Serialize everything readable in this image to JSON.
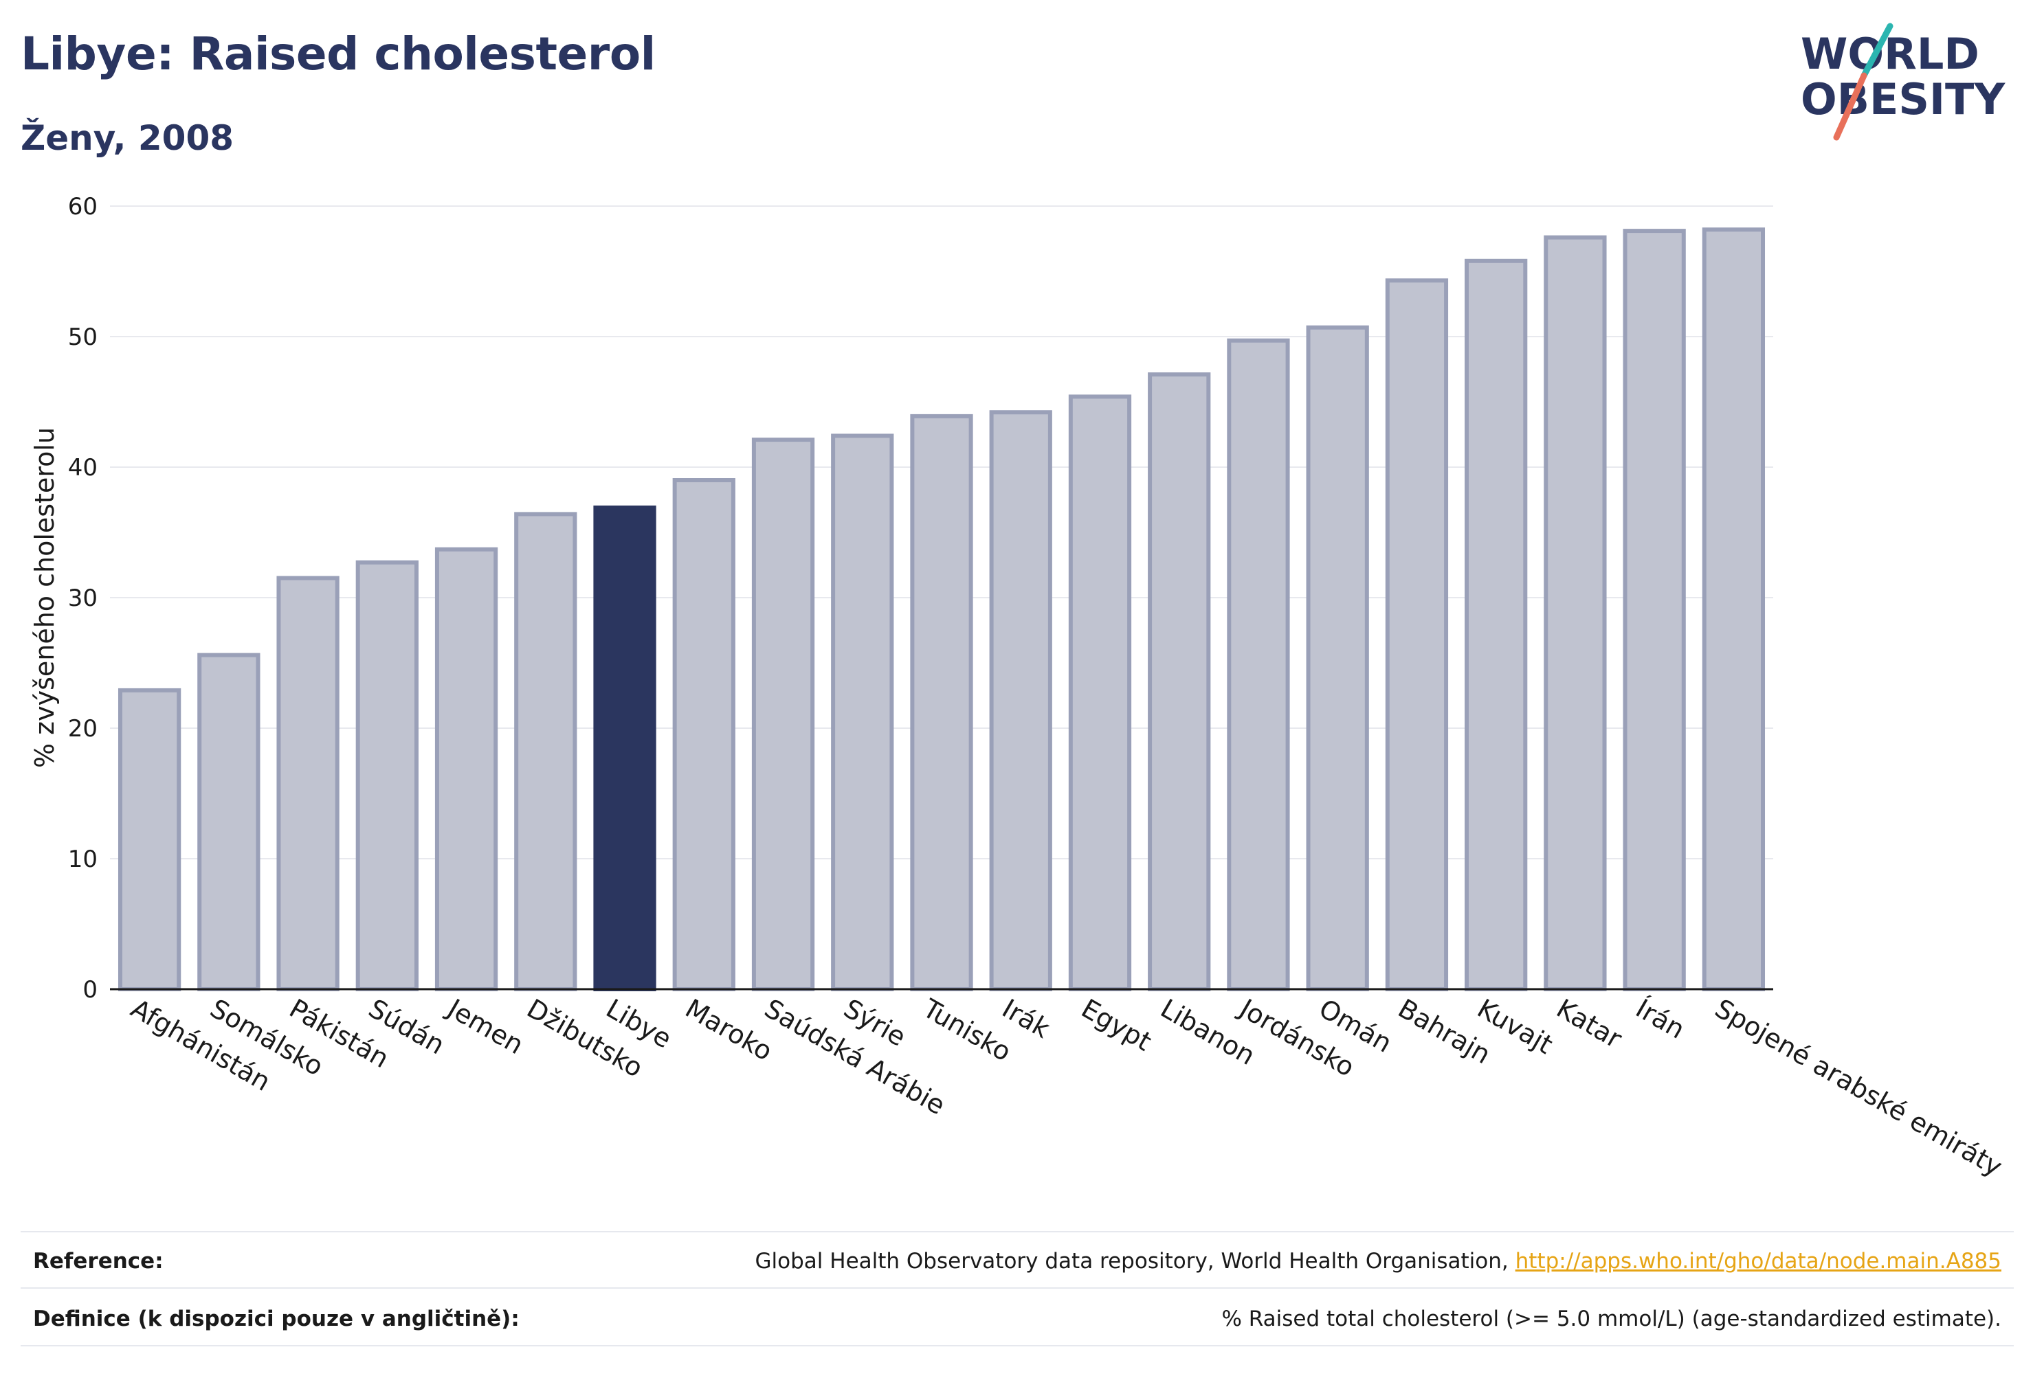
{
  "header": {
    "title": "Libye: Raised cholesterol",
    "subtitle": "Ženy, 2008",
    "logo_text_1": "WORLD",
    "logo_text_2": "OBESITY"
  },
  "colors": {
    "title": "#2a3560",
    "highlight_bar": "#2b365f",
    "other_bar_fill": "#c0c3d0",
    "other_bar_stroke": "#9aa0b8",
    "logo_teal": "#2bb5b0",
    "logo_coral": "#e8705a",
    "link": "#e6a415"
  },
  "chart_data": {
    "type": "bar",
    "highlight": "Libye",
    "categories": [
      "Afghánistán",
      "Somálsko",
      "Pákistán",
      "Súdán",
      "Jemen",
      "Džibutsko",
      "Libye",
      "Maroko",
      "Saúdská Arábie",
      "Sýrie",
      "Tunisko",
      "Irák",
      "Egypt",
      "Libanon",
      "Jordánsko",
      "Omán",
      "Bahrajn",
      "Kuvajt",
      "Katar",
      "Írán",
      "Spojené arabské emiráty"
    ],
    "values": [
      22.9,
      25.6,
      31.5,
      32.7,
      33.7,
      36.4,
      36.9,
      39.0,
      42.1,
      42.4,
      43.9,
      44.2,
      45.4,
      47.1,
      49.7,
      50.7,
      54.3,
      55.8,
      57.6,
      58.1,
      58.2
    ],
    "ylabel": "% zvýšeného cholesterolu",
    "xlabel": "",
    "ylim": [
      0,
      60
    ],
    "yticks": [
      0,
      10,
      20,
      30,
      40,
      50,
      60
    ],
    "grid": true
  },
  "footer": {
    "reference_label": "Reference:",
    "reference_text": "Global Health Observatory data repository, World Health Organisation, ",
    "reference_link": "http://apps.who.int/gho/data/node.main.A885",
    "definition_label": "Definice (k dispozici pouze v angličtině):",
    "definition_text": "% Raised total cholesterol (>= 5.0 mmol/L) (age-standardized estimate)."
  }
}
